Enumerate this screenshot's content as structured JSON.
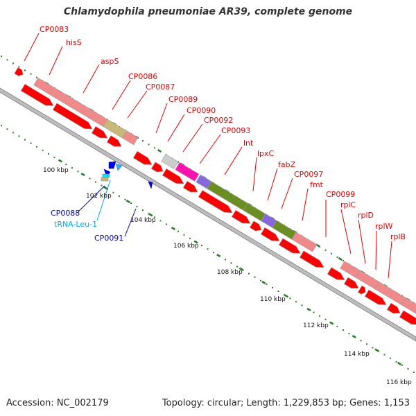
{
  "title": "Chlamydophila pneumoniae AR39, complete genome",
  "footer": {
    "accession": "Accession: NC_002179",
    "summary": "Topology: circular; Length: 1,229,853 bp; Genes: 1,153"
  },
  "colors": {
    "cds": "#ff0000",
    "label_red": "#e60000",
    "label_blue": "#0000bb",
    "label_cyan": "#00aaee",
    "tick": "#2a7a2a",
    "backbone": "#aaaaaa",
    "kbp_text": "#111111"
  },
  "kbp_labels": [
    "100 kbp",
    "102 kbp",
    "104 kbp",
    "106 kbp",
    "108 kbp",
    "110 kbp",
    "112 kbp",
    "114 kbp",
    "116 kbp"
  ],
  "labels_top": [
    "CP0083",
    "hisS",
    "aspS",
    "CP0086",
    "CP0087",
    "CP0089",
    "CP0090",
    "CP0092",
    "CP0093",
    "lnt",
    "lpxC",
    "fabZ",
    "CP0097",
    "fmt",
    "CP0099",
    "rplC",
    "rplD",
    "rplW",
    "rplB"
  ],
  "labels_bottom": [
    "CP0088",
    "tRNA-Leu-1",
    "CP0091"
  ]
}
